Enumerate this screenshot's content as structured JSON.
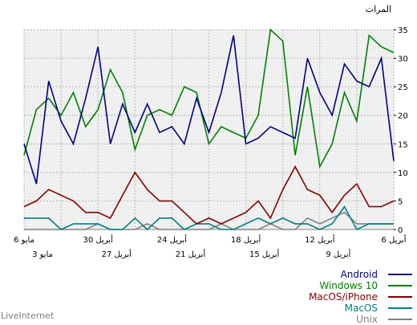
{
  "chart_data": {
    "type": "line",
    "ylabel": "المرات",
    "ylim": [
      0,
      35
    ],
    "yticks": [
      0,
      5,
      10,
      15,
      20,
      25,
      30,
      35
    ],
    "grid": true,
    "legend_position": "bottom-right",
    "x_label_rows": [
      [
        "6 مايو",
        "30 أبريل",
        "24 أبريل",
        "18 أبريل",
        "12 أبريل",
        "6 أبريل"
      ],
      [
        "3 مايو",
        "27 أبريل",
        "21 أبريل",
        "15 أبريل",
        "9 أبريل"
      ]
    ],
    "x_direction": "right-to-left",
    "series": [
      {
        "name": "Android",
        "color": "#000080",
        "values": [
          15,
          8,
          26,
          19,
          15,
          23,
          32,
          15,
          22,
          17,
          22,
          17,
          18,
          15,
          23,
          17,
          24,
          34,
          15,
          16,
          18,
          17,
          16,
          30,
          24,
          20,
          29,
          26,
          25,
          30,
          12
        ]
      },
      {
        "name": "Windows 10",
        "color": "#008000",
        "values": [
          13,
          21,
          23,
          20,
          24,
          18,
          21,
          28,
          24,
          14,
          20,
          21,
          20,
          25,
          24,
          15,
          18,
          17,
          16,
          20,
          35,
          33,
          13,
          25,
          11,
          15,
          24,
          19,
          34,
          32,
          31
        ]
      },
      {
        "name": "MacOS/iPhone",
        "color": "#800000",
        "values": [
          4,
          5,
          7,
          6,
          5,
          3,
          3,
          2,
          6,
          10,
          7,
          5,
          5,
          3,
          1,
          2,
          1,
          2,
          3,
          5,
          2,
          7,
          11,
          7,
          6,
          3,
          6,
          8,
          4,
          4,
          5
        ]
      },
      {
        "name": "MacOS",
        "color": "#008080",
        "values": [
          2,
          2,
          2,
          0,
          1,
          1,
          1,
          0,
          0,
          2,
          0,
          2,
          2,
          0,
          1,
          1,
          0,
          0,
          1,
          2,
          1,
          2,
          1,
          1,
          0,
          1,
          4,
          0,
          1,
          1,
          1
        ]
      },
      {
        "name": "Unix",
        "color": "#808080",
        "values": [
          0,
          0,
          0,
          0,
          0,
          0,
          1,
          0,
          0,
          0,
          1,
          0,
          0,
          0,
          0,
          0,
          1,
          0,
          0,
          0,
          1,
          0,
          0,
          2,
          1,
          2,
          3,
          1,
          1,
          1,
          1
        ]
      }
    ]
  },
  "footer": "LiveInternet"
}
